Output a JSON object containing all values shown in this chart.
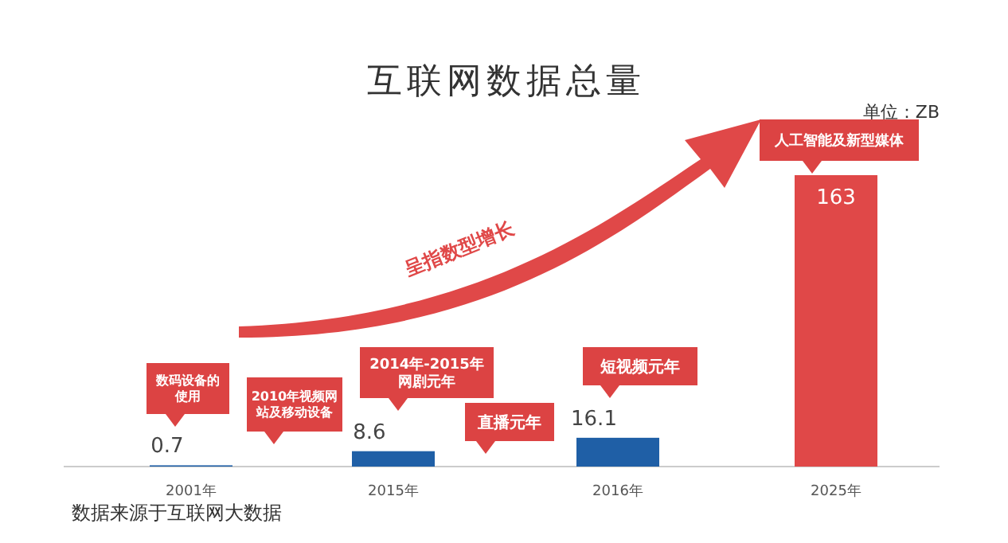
{
  "chart_data": {
    "type": "bar",
    "title": "互联网数据总量",
    "subtitle": "单位：ZB",
    "categories": [
      "2001年",
      "2015年",
      "2016年",
      "2025年"
    ],
    "values": [
      0.7,
      8.6,
      16.1,
      163
    ],
    "colors": [
      "#1f5fa6",
      "#1f5fa6",
      "#1f5fa6",
      "#e04848"
    ],
    "data_labels": true,
    "annotations": [
      "数码设备的使用",
      "2010年视频网站及移动设备",
      "2014年-2015年网剧元年",
      "直播元年",
      "短视频元年",
      "人工智能及新型媒体",
      "呈指数型增长",
      "数据来源于互联网大数据"
    ]
  }
}
